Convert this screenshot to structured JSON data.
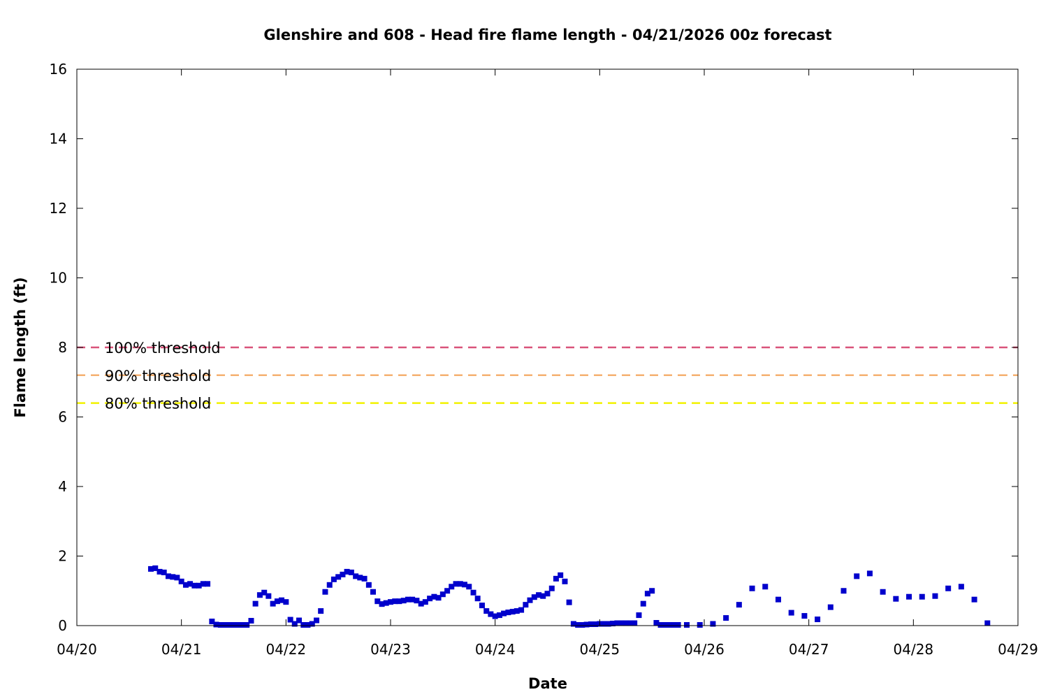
{
  "chart_data": {
    "type": "scatter",
    "title": "Glenshire and 608 - Head fire flame length - 04/21/2026 00z forecast",
    "xlabel": "Date",
    "ylabel": "Flame length (ft)",
    "x_unit": "days",
    "xlim": [
      0,
      9
    ],
    "ylim": [
      0,
      16
    ],
    "x_ticks": [
      {
        "v": 0,
        "label": "04/20"
      },
      {
        "v": 1,
        "label": "04/21"
      },
      {
        "v": 2,
        "label": "04/22"
      },
      {
        "v": 3,
        "label": "04/23"
      },
      {
        "v": 4,
        "label": "04/24"
      },
      {
        "v": 5,
        "label": "04/25"
      },
      {
        "v": 6,
        "label": "04/26"
      },
      {
        "v": 7,
        "label": "04/27"
      },
      {
        "v": 8,
        "label": "04/28"
      },
      {
        "v": 9,
        "label": "04/29"
      }
    ],
    "y_ticks": [
      {
        "v": 0,
        "label": "0"
      },
      {
        "v": 2,
        "label": "2"
      },
      {
        "v": 4,
        "label": "4"
      },
      {
        "v": 6,
        "label": "6"
      },
      {
        "v": 8,
        "label": "8"
      },
      {
        "v": 10,
        "label": "10"
      },
      {
        "v": 12,
        "label": "12"
      },
      {
        "v": 14,
        "label": "14"
      },
      {
        "v": 16,
        "label": "16"
      }
    ],
    "grid": false,
    "legend": "left",
    "thresholds": [
      {
        "name": "100% threshold",
        "value": 8.0,
        "color": "#d9537a"
      },
      {
        "name": "90% threshold",
        "value": 7.2,
        "color": "#f5b070"
      },
      {
        "name": "80% threshold",
        "value": 6.4,
        "color": "#f2f200"
      }
    ],
    "series": [
      {
        "color": "#0000cc",
        "points": [
          [
            0.708,
            1.63
          ],
          [
            0.75,
            1.65
          ],
          [
            0.792,
            1.55
          ],
          [
            0.833,
            1.53
          ],
          [
            0.875,
            1.42
          ],
          [
            0.917,
            1.4
          ],
          [
            0.958,
            1.38
          ],
          [
            1.0,
            1.27
          ],
          [
            1.042,
            1.17
          ],
          [
            1.083,
            1.2
          ],
          [
            1.125,
            1.15
          ],
          [
            1.167,
            1.15
          ],
          [
            1.208,
            1.2
          ],
          [
            1.25,
            1.2
          ],
          [
            1.292,
            0.12
          ],
          [
            1.333,
            0.03
          ],
          [
            1.375,
            0.02
          ],
          [
            1.417,
            0.02
          ],
          [
            1.458,
            0.02
          ],
          [
            1.5,
            0.02
          ],
          [
            1.542,
            0.02
          ],
          [
            1.583,
            0.02
          ],
          [
            1.625,
            0.02
          ],
          [
            1.667,
            0.14
          ],
          [
            1.708,
            0.63
          ],
          [
            1.75,
            0.88
          ],
          [
            1.792,
            0.95
          ],
          [
            1.833,
            0.85
          ],
          [
            1.875,
            0.63
          ],
          [
            1.917,
            0.7
          ],
          [
            1.958,
            0.73
          ],
          [
            2.0,
            0.68
          ],
          [
            2.042,
            0.17
          ],
          [
            2.083,
            0.05
          ],
          [
            2.125,
            0.15
          ],
          [
            2.167,
            0.02
          ],
          [
            2.208,
            0.02
          ],
          [
            2.25,
            0.05
          ],
          [
            2.292,
            0.15
          ],
          [
            2.333,
            0.42
          ],
          [
            2.375,
            0.97
          ],
          [
            2.417,
            1.17
          ],
          [
            2.458,
            1.33
          ],
          [
            2.5,
            1.4
          ],
          [
            2.542,
            1.47
          ],
          [
            2.583,
            1.55
          ],
          [
            2.625,
            1.53
          ],
          [
            2.667,
            1.42
          ],
          [
            2.708,
            1.38
          ],
          [
            2.75,
            1.35
          ],
          [
            2.792,
            1.17
          ],
          [
            2.833,
            0.97
          ],
          [
            2.875,
            0.7
          ],
          [
            2.917,
            0.62
          ],
          [
            2.958,
            0.65
          ],
          [
            3.0,
            0.68
          ],
          [
            3.042,
            0.7
          ],
          [
            3.083,
            0.7
          ],
          [
            3.125,
            0.72
          ],
          [
            3.167,
            0.75
          ],
          [
            3.208,
            0.75
          ],
          [
            3.25,
            0.72
          ],
          [
            3.292,
            0.63
          ],
          [
            3.333,
            0.68
          ],
          [
            3.375,
            0.78
          ],
          [
            3.417,
            0.83
          ],
          [
            3.458,
            0.8
          ],
          [
            3.5,
            0.9
          ],
          [
            3.542,
            1.0
          ],
          [
            3.583,
            1.12
          ],
          [
            3.625,
            1.2
          ],
          [
            3.667,
            1.2
          ],
          [
            3.708,
            1.18
          ],
          [
            3.75,
            1.12
          ],
          [
            3.792,
            0.95
          ],
          [
            3.833,
            0.78
          ],
          [
            3.875,
            0.58
          ],
          [
            3.917,
            0.42
          ],
          [
            3.958,
            0.33
          ],
          [
            4.0,
            0.27
          ],
          [
            4.042,
            0.3
          ],
          [
            4.083,
            0.35
          ],
          [
            4.125,
            0.38
          ],
          [
            4.167,
            0.4
          ],
          [
            4.208,
            0.42
          ],
          [
            4.25,
            0.45
          ],
          [
            4.292,
            0.6
          ],
          [
            4.333,
            0.73
          ],
          [
            4.375,
            0.82
          ],
          [
            4.417,
            0.88
          ],
          [
            4.458,
            0.85
          ],
          [
            4.5,
            0.92
          ],
          [
            4.542,
            1.07
          ],
          [
            4.583,
            1.35
          ],
          [
            4.625,
            1.45
          ],
          [
            4.667,
            1.27
          ],
          [
            4.708,
            0.67
          ],
          [
            4.75,
            0.05
          ],
          [
            4.792,
            0.02
          ],
          [
            4.833,
            0.02
          ],
          [
            4.875,
            0.03
          ],
          [
            4.917,
            0.04
          ],
          [
            4.958,
            0.04
          ],
          [
            5.0,
            0.05
          ],
          [
            5.042,
            0.05
          ],
          [
            5.083,
            0.05
          ],
          [
            5.125,
            0.06
          ],
          [
            5.167,
            0.07
          ],
          [
            5.208,
            0.07
          ],
          [
            5.25,
            0.07
          ],
          [
            5.292,
            0.07
          ],
          [
            5.333,
            0.07
          ],
          [
            5.375,
            0.3
          ],
          [
            5.417,
            0.63
          ],
          [
            5.458,
            0.92
          ],
          [
            5.5,
            1.0
          ],
          [
            5.542,
            0.08
          ],
          [
            5.583,
            0.02
          ],
          [
            5.625,
            0.02
          ],
          [
            5.667,
            0.02
          ],
          [
            5.708,
            0.02
          ],
          [
            5.75,
            0.02
          ],
          [
            5.833,
            0.02
          ],
          [
            5.958,
            0.02
          ],
          [
            6.083,
            0.05
          ],
          [
            6.208,
            0.22
          ],
          [
            6.333,
            0.6
          ],
          [
            6.458,
            1.07
          ],
          [
            6.583,
            1.12
          ],
          [
            6.708,
            0.75
          ],
          [
            6.833,
            0.37
          ],
          [
            6.958,
            0.28
          ],
          [
            7.083,
            0.18
          ],
          [
            7.208,
            0.53
          ],
          [
            7.333,
            1.0
          ],
          [
            7.458,
            1.42
          ],
          [
            7.583,
            1.5
          ],
          [
            7.708,
            0.97
          ],
          [
            7.833,
            0.77
          ],
          [
            7.958,
            0.83
          ],
          [
            8.083,
            0.83
          ],
          [
            8.208,
            0.85
          ],
          [
            8.333,
            1.07
          ],
          [
            8.458,
            1.12
          ],
          [
            8.583,
            0.75
          ],
          [
            8.708,
            0.07
          ]
        ]
      }
    ]
  }
}
